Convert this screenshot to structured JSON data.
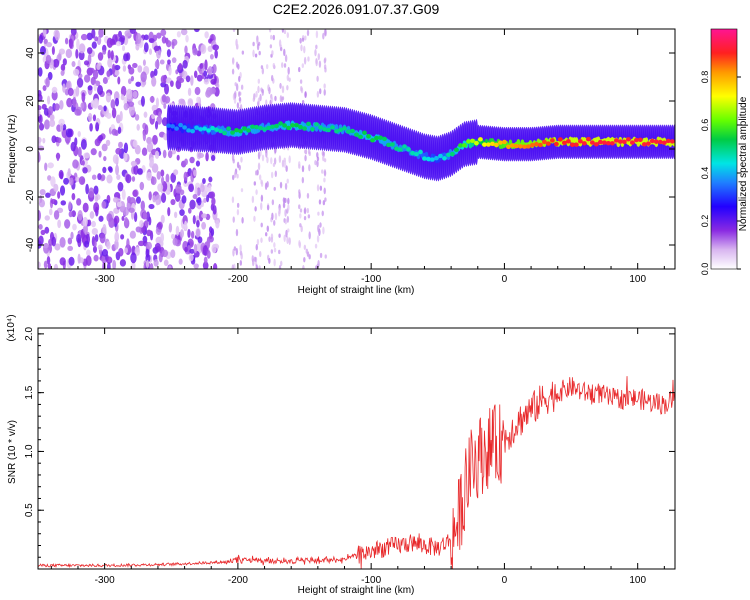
{
  "title": "C2E2.2026.091.07.37.G09",
  "colorbar": {
    "label": "Normalized spectral amplitude",
    "ticks": [
      "0.0",
      "0.2",
      "0.4",
      "0.6",
      "0.8"
    ],
    "tick_values": [
      0.0,
      0.2,
      0.4,
      0.6,
      0.8
    ],
    "range": [
      0,
      1
    ]
  },
  "chart_data": [
    {
      "type": "heatmap",
      "xlabel": "Height of straight line (km)",
      "ylabel": "Frequency (Hz)",
      "xlim": [
        -350,
        128
      ],
      "ylim": [
        -50,
        50
      ],
      "xticks": [
        -300,
        -200,
        -100,
        0,
        100
      ],
      "yticks": [
        -40,
        -20,
        0,
        20,
        40
      ],
      "xtick_labels": [
        "-300",
        "-200",
        "-100",
        "0",
        "100"
      ],
      "ytick_labels": [
        "-40",
        "-20",
        "0",
        "20",
        "40"
      ],
      "ridge": {
        "x": [
          -250,
          -220,
          -200,
          -180,
          -160,
          -140,
          -120,
          -100,
          -80,
          -60,
          -50,
          -40,
          -30,
          -20,
          0,
          20,
          40,
          60,
          80,
          100,
          128
        ],
        "freq_hz": [
          9,
          8,
          7,
          9,
          10,
          9,
          8,
          5,
          1,
          -3,
          -4,
          -2,
          2,
          3,
          2,
          2,
          3,
          3,
          3,
          3,
          3
        ],
        "amplitude": [
          0.35,
          0.45,
          0.55,
          0.5,
          0.55,
          0.5,
          0.5,
          0.55,
          0.5,
          0.45,
          0.4,
          0.5,
          0.6,
          0.7,
          0.8,
          0.85,
          0.9,
          0.92,
          0.92,
          0.92,
          0.92
        ]
      },
      "noise_region_x": [
        -350,
        -215
      ]
    },
    {
      "type": "line",
      "xlabel": "Height of straight line (km)",
      "ylabel": "SNR (10 * v/v)",
      "y_exponent_label": "(x10⁴)",
      "xlim": [
        -350,
        128
      ],
      "ylim": [
        0,
        2.05
      ],
      "xticks": [
        -300,
        -200,
        -100,
        0,
        100
      ],
      "yticks": [
        0.5,
        1.0,
        1.5,
        2.0
      ],
      "xtick_labels": [
        "-300",
        "-200",
        "-100",
        "0",
        "100"
      ],
      "ytick_labels": [
        "0.5",
        "1.0",
        "1.5",
        "2.0"
      ],
      "color": "#e8292b",
      "series": [
        {
          "name": "SNR",
          "x": [
            -350,
            -300,
            -250,
            -210,
            -200,
            -180,
            -150,
            -120,
            -110,
            -100,
            -90,
            -80,
            -70,
            -60,
            -50,
            -40,
            -35,
            -30,
            -25,
            -20,
            -15,
            -10,
            -5,
            0,
            10,
            20,
            30,
            40,
            50,
            60,
            70,
            80,
            90,
            100,
            110,
            120,
            128
          ],
          "y": [
            0.03,
            0.03,
            0.04,
            0.06,
            0.08,
            0.07,
            0.07,
            0.08,
            0.12,
            0.15,
            0.18,
            0.2,
            0.22,
            0.2,
            0.18,
            0.25,
            0.4,
            0.65,
            0.85,
            0.95,
            1.0,
            1.05,
            1.05,
            1.1,
            1.25,
            1.35,
            1.45,
            1.5,
            1.55,
            1.5,
            1.5,
            1.45,
            1.45,
            1.45,
            1.42,
            1.4,
            1.45
          ]
        }
      ]
    }
  ]
}
